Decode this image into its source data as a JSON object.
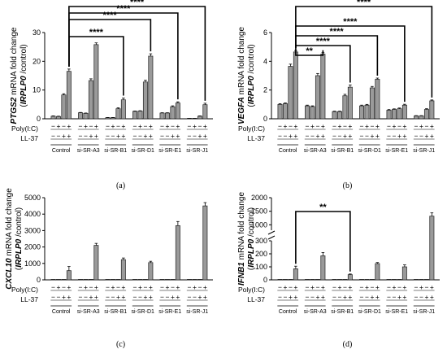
{
  "chart_data": [
    {
      "type": "bar",
      "panel_label": "(a)",
      "ylabel_gene": "PTGS2",
      "ylabel_rest": " mRNA fold change",
      "ylabel2_gene": "IRPLP0",
      "ylabel2_open": "(",
      "ylabel2_rest": " /control)",
      "ylim": [
        0,
        30
      ],
      "yticks": [
        "0",
        "10",
        "20",
        "30"
      ],
      "ytick_values": [
        0,
        10,
        20,
        30
      ],
      "groups": [
        "Control",
        "si-SR-A3",
        "si-SR-B1",
        "si-SR-D1",
        "si-SR-E1",
        "si-SR-J1"
      ],
      "values": [
        [
          0.9,
          0.8,
          8.3,
          16.5
        ],
        [
          2.1,
          1.9,
          13.3,
          25.8
        ],
        [
          0.4,
          0.4,
          3.5,
          6.6
        ],
        [
          2.6,
          2.7,
          12.8,
          21.8
        ],
        [
          2.0,
          2.0,
          4.2,
          5.5
        ],
        [
          0.05,
          0.05,
          0.9,
          4.9
        ]
      ],
      "errors": [
        [
          0.1,
          0.1,
          0.4,
          0.8
        ],
        [
          0.1,
          0.1,
          0.6,
          0.6
        ],
        [
          0.05,
          0.05,
          0.3,
          0.6
        ],
        [
          0.1,
          0.1,
          0.6,
          0.8
        ],
        [
          0.1,
          0.1,
          0.3,
          0.4
        ],
        [
          0.02,
          0.02,
          0.1,
          0.5
        ]
      ],
      "significance": [
        {
          "label": "****",
          "ref_group": 0,
          "target_group": 2
        },
        {
          "label": "****",
          "ref_group": 0,
          "target_group": 3
        },
        {
          "label": "****",
          "ref_group": 0,
          "target_group": 4
        },
        {
          "label": "****",
          "ref_group": 0,
          "target_group": 5
        }
      ]
    },
    {
      "type": "bar",
      "panel_label": "(b)",
      "ylabel_gene": "VEGFA",
      "ylabel_rest": " mRNA fold change",
      "ylabel2_gene": "IRPLP0",
      "ylabel2_open": "(",
      "ylabel2_rest": " /control)",
      "ylim": [
        0,
        6
      ],
      "yticks": [
        "0",
        "2",
        "4",
        "6"
      ],
      "ytick_values": [
        0,
        2,
        4,
        6
      ],
      "groups": [
        "Control",
        "si-SR-A3",
        "si-SR-B1",
        "si-SR-D1",
        "si-SR-E1",
        "si-SR-J1"
      ],
      "values": [
        [
          1.0,
          1.05,
          3.65,
          4.65
        ],
        [
          0.9,
          0.85,
          3.0,
          4.5
        ],
        [
          0.5,
          0.5,
          1.6,
          2.2
        ],
        [
          0.9,
          0.95,
          2.15,
          2.75
        ],
        [
          0.6,
          0.65,
          0.7,
          0.95
        ],
        [
          0.2,
          0.2,
          0.65,
          1.25
        ]
      ],
      "errors": [
        [
          0.05,
          0.05,
          0.15,
          0.1
        ],
        [
          0.05,
          0.05,
          0.15,
          0.1
        ],
        [
          0.03,
          0.03,
          0.1,
          0.15
        ],
        [
          0.05,
          0.05,
          0.1,
          0.08
        ],
        [
          0.04,
          0.04,
          0.05,
          0.06
        ],
        [
          0.02,
          0.02,
          0.05,
          0.06
        ]
      ],
      "significance": [
        {
          "label": "**",
          "ref_group": 0,
          "target_group": 1
        },
        {
          "label": "****",
          "ref_group": 0,
          "target_group": 2
        },
        {
          "label": "****",
          "ref_group": 0,
          "target_group": 3
        },
        {
          "label": "****",
          "ref_group": 0,
          "target_group": 4
        },
        {
          "label": "****",
          "ref_group": 0,
          "target_group": 5
        }
      ]
    },
    {
      "type": "bar",
      "panel_label": "(c)",
      "ylabel_gene": "CXCL10",
      "ylabel_rest": " mRNA fold change",
      "ylabel2_gene": "IRPLP0",
      "ylabel2_open": "(",
      "ylabel2_rest": " /control)",
      "ylim": [
        0,
        5000
      ],
      "yticks": [
        "0",
        "1000",
        "2000",
        "3000",
        "4000",
        "5000"
      ],
      "ytick_values": [
        0,
        1000,
        2000,
        3000,
        4000,
        5000
      ],
      "groups": [
        "Control",
        "si-SR-A3",
        "si-SR-B1",
        "si-SR-D1",
        "si-SR-E1",
        "si-SR-J1"
      ],
      "values": [
        [
          0,
          0,
          0,
          560
        ],
        [
          0,
          0,
          0,
          2100
        ],
        [
          0,
          0,
          0,
          1230
        ],
        [
          0,
          0,
          0,
          1050
        ],
        [
          0,
          0,
          0,
          3300
        ],
        [
          0,
          0,
          0,
          4500
        ]
      ],
      "errors": [
        [
          0,
          0,
          0,
          250
        ],
        [
          0,
          0,
          0,
          120
        ],
        [
          0,
          0,
          0,
          100
        ],
        [
          0,
          0,
          0,
          80
        ],
        [
          0,
          0,
          0,
          250
        ],
        [
          0,
          0,
          0,
          200
        ]
      ],
      "significance": []
    },
    {
      "type": "bar",
      "panel_label": "(d)",
      "ylabel_gene": "IFNB1",
      "ylabel_rest": " mRNA fold change",
      "ylabel2_gene": "IRPLP0",
      "ylabel2_open": "(",
      "ylabel2_rest": " /control)",
      "axis_break": true,
      "ylim_lower": [
        0,
        300
      ],
      "ylim_upper": [
        800,
        2000
      ],
      "yticks": [
        "0",
        "100",
        "200",
        "300",
        "1000",
        "1500",
        "2000"
      ],
      "ytick_values": [
        0,
        100,
        200,
        300,
        1000,
        1500,
        2000
      ],
      "groups": [
        "Control",
        "si-SR-A3",
        "si-SR-B1",
        "si-SR-D1",
        "si-SR-E1",
        "si-SR-J1"
      ],
      "values": [
        [
          0,
          0,
          0,
          85
        ],
        [
          0,
          0,
          0,
          185
        ],
        [
          0,
          0,
          0,
          40
        ],
        [
          0,
          0,
          0,
          125
        ],
        [
          0,
          0,
          0,
          100
        ],
        [
          0,
          0,
          0,
          1320
        ]
      ],
      "errors": [
        [
          0,
          0,
          0,
          20
        ],
        [
          0,
          0,
          0,
          25
        ],
        [
          0,
          0,
          0,
          5
        ],
        [
          0,
          0,
          0,
          8
        ],
        [
          0,
          0,
          0,
          15
        ],
        [
          0,
          0,
          0,
          120
        ]
      ],
      "significance": [
        {
          "label": "**",
          "ref_group": 0,
          "target_group": 2
        }
      ]
    }
  ],
  "treatment_rows": {
    "row1_label": "Poly(I:C)",
    "row2_label": "LL-37",
    "row1_pattern": [
      "−",
      "+",
      "−",
      "+"
    ],
    "row2_pattern": [
      "−",
      "−",
      "+",
      "+"
    ]
  }
}
